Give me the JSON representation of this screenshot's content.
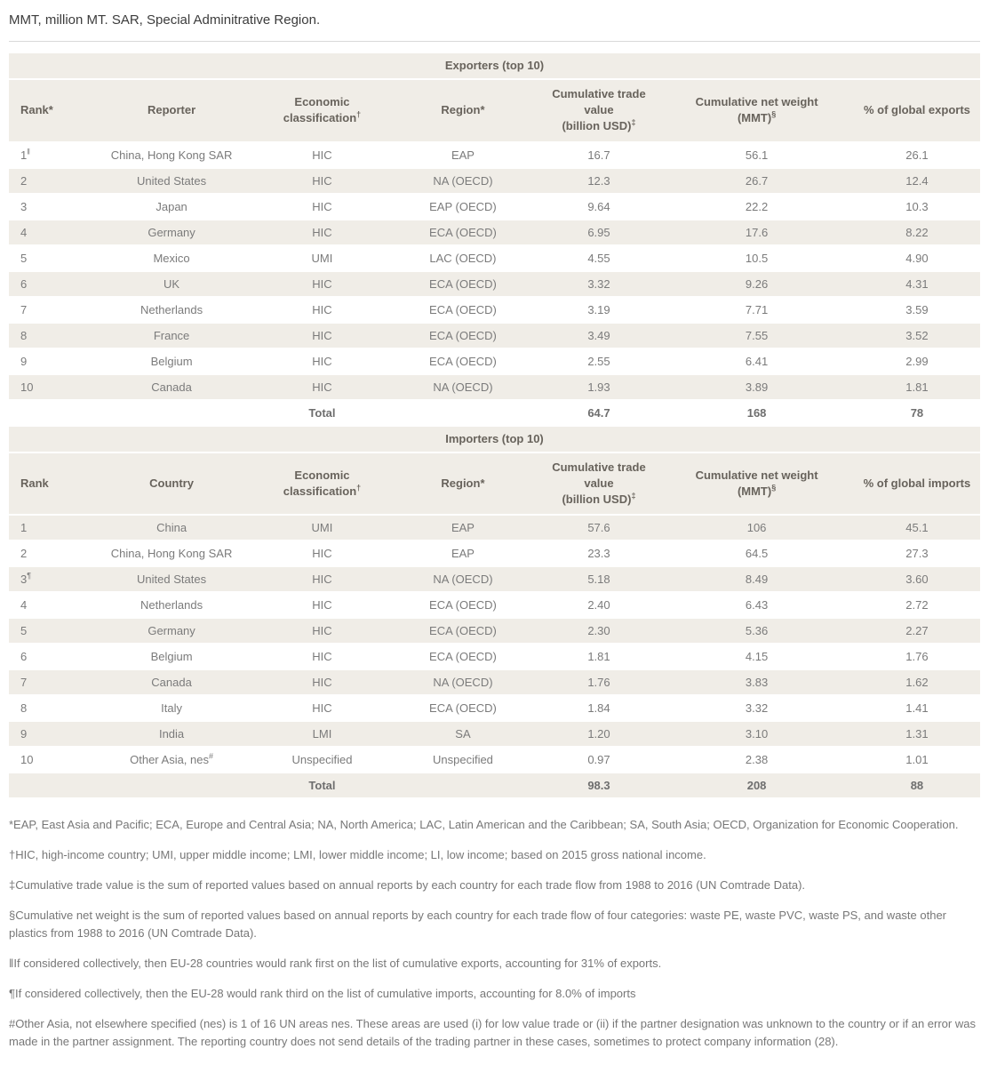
{
  "caption": "MMT, million MT. SAR, Special Adminitrative Region.",
  "colors": {
    "stripe_beige": "#f0ede7",
    "header_text": "#68635c",
    "body_text": "#7b7b7b",
    "title_text": "#3c3c3c",
    "footnote_text": "#777777",
    "divider": "#d9d9d9"
  },
  "exporters": {
    "section_title": "Exporters (top 10)",
    "columns": [
      {
        "key": "rank",
        "line1": "Rank*"
      },
      {
        "key": "reporter",
        "line1": "Reporter"
      },
      {
        "key": "econ",
        "line1": "Economic classification",
        "sup": "†"
      },
      {
        "key": "region",
        "line1": "Region*"
      },
      {
        "key": "trade",
        "line1": "Cumulative trade value",
        "line2": "(billion USD)",
        "sup2": "‡"
      },
      {
        "key": "weight",
        "line1": "Cumulative net weight",
        "line2": "(MMT)",
        "sup2": "§"
      },
      {
        "key": "pct",
        "line1": "% of global exports"
      }
    ],
    "rows": [
      {
        "rank": "1",
        "rank_sup": "‖",
        "name": "China, Hong Kong SAR",
        "name_sup": "",
        "econ": "HIC",
        "region": "EAP",
        "trade": "16.7",
        "weight": "56.1",
        "pct": "26.1"
      },
      {
        "rank": "2",
        "rank_sup": "",
        "name": "United States",
        "name_sup": "",
        "econ": "HIC",
        "region": "NA (OECD)",
        "trade": "12.3",
        "weight": "26.7",
        "pct": "12.4"
      },
      {
        "rank": "3",
        "rank_sup": "",
        "name": "Japan",
        "name_sup": "",
        "econ": "HIC",
        "region": "EAP (OECD)",
        "trade": "9.64",
        "weight": "22.2",
        "pct": "10.3"
      },
      {
        "rank": "4",
        "rank_sup": "",
        "name": "Germany",
        "name_sup": "",
        "econ": "HIC",
        "region": "ECA (OECD)",
        "trade": "6.95",
        "weight": "17.6",
        "pct": "8.22"
      },
      {
        "rank": "5",
        "rank_sup": "",
        "name": "Mexico",
        "name_sup": "",
        "econ": "UMI",
        "region": "LAC (OECD)",
        "trade": "4.55",
        "weight": "10.5",
        "pct": "4.90"
      },
      {
        "rank": "6",
        "rank_sup": "",
        "name": "UK",
        "name_sup": "",
        "econ": "HIC",
        "region": "ECA (OECD)",
        "trade": "3.32",
        "weight": "9.26",
        "pct": "4.31"
      },
      {
        "rank": "7",
        "rank_sup": "",
        "name": "Netherlands",
        "name_sup": "",
        "econ": "HIC",
        "region": "ECA (OECD)",
        "trade": "3.19",
        "weight": "7.71",
        "pct": "3.59"
      },
      {
        "rank": "8",
        "rank_sup": "",
        "name": "France",
        "name_sup": "",
        "econ": "HIC",
        "region": "ECA (OECD)",
        "trade": "3.49",
        "weight": "7.55",
        "pct": "3.52"
      },
      {
        "rank": "9",
        "rank_sup": "",
        "name": "Belgium",
        "name_sup": "",
        "econ": "HIC",
        "region": "ECA (OECD)",
        "trade": "2.55",
        "weight": "6.41",
        "pct": "2.99"
      },
      {
        "rank": "10",
        "rank_sup": "",
        "name": "Canada",
        "name_sup": "",
        "econ": "HIC",
        "region": "NA (OECD)",
        "trade": "1.93",
        "weight": "3.89",
        "pct": "1.81"
      }
    ],
    "total": {
      "label": "Total",
      "trade": "64.7",
      "weight": "168",
      "pct": "78"
    }
  },
  "importers": {
    "section_title": "Importers (top 10)",
    "columns": [
      {
        "key": "rank",
        "line1": "Rank"
      },
      {
        "key": "country",
        "line1": "Country"
      },
      {
        "key": "econ",
        "line1": "Economic classification",
        "sup": "†"
      },
      {
        "key": "region",
        "line1": "Region*"
      },
      {
        "key": "trade",
        "line1": "Cumulative trade value",
        "line2": "(billion USD)",
        "sup2": "‡"
      },
      {
        "key": "weight",
        "line1": "Cumulative net weight",
        "line2": "(MMT)",
        "sup2": "§"
      },
      {
        "key": "pct",
        "line1": "% of global imports"
      }
    ],
    "rows": [
      {
        "rank": "1",
        "rank_sup": "",
        "name": "China",
        "name_sup": "",
        "econ": "UMI",
        "region": "EAP",
        "trade": "57.6",
        "weight": "106",
        "pct": "45.1"
      },
      {
        "rank": "2",
        "rank_sup": "",
        "name": "China, Hong Kong SAR",
        "name_sup": "",
        "econ": "HIC",
        "region": "EAP",
        "trade": "23.3",
        "weight": "64.5",
        "pct": "27.3"
      },
      {
        "rank": "3",
        "rank_sup": "¶",
        "name": "United States",
        "name_sup": "",
        "econ": "HIC",
        "region": "NA (OECD)",
        "trade": "5.18",
        "weight": "8.49",
        "pct": "3.60"
      },
      {
        "rank": "4",
        "rank_sup": "",
        "name": "Netherlands",
        "name_sup": "",
        "econ": "HIC",
        "region": "ECA (OECD)",
        "trade": "2.40",
        "weight": "6.43",
        "pct": "2.72"
      },
      {
        "rank": "5",
        "rank_sup": "",
        "name": "Germany",
        "name_sup": "",
        "econ": "HIC",
        "region": "ECA (OECD)",
        "trade": "2.30",
        "weight": "5.36",
        "pct": "2.27"
      },
      {
        "rank": "6",
        "rank_sup": "",
        "name": "Belgium",
        "name_sup": "",
        "econ": "HIC",
        "region": "ECA (OECD)",
        "trade": "1.81",
        "weight": "4.15",
        "pct": "1.76"
      },
      {
        "rank": "7",
        "rank_sup": "",
        "name": "Canada",
        "name_sup": "",
        "econ": "HIC",
        "region": "NA (OECD)",
        "trade": "1.76",
        "weight": "3.83",
        "pct": "1.62"
      },
      {
        "rank": "8",
        "rank_sup": "",
        "name": "Italy",
        "name_sup": "",
        "econ": "HIC",
        "region": "ECA (OECD)",
        "trade": "1.84",
        "weight": "3.32",
        "pct": "1.41"
      },
      {
        "rank": "9",
        "rank_sup": "",
        "name": "India",
        "name_sup": "",
        "econ": "LMI",
        "region": "SA",
        "trade": "1.20",
        "weight": "3.10",
        "pct": "1.31"
      },
      {
        "rank": "10",
        "rank_sup": "",
        "name": "Other Asia, nes",
        "name_sup": "#",
        "econ": "Unspecified",
        "region": "Unspecified",
        "trade": "0.97",
        "weight": "2.38",
        "pct": "1.01"
      }
    ],
    "total": {
      "label": "Total",
      "trade": "98.3",
      "weight": "208",
      "pct": "88"
    }
  },
  "footnotes": [
    "*EAP, East Asia and Pacific; ECA, Europe and Central Asia; NA, North America; LAC, Latin American and the Caribbean; SA, South Asia; OECD, Organization for Economic Cooperation.",
    "†HIC, high-income country; UMI, upper middle income; LMI, lower middle income; LI, low income; based on 2015 gross national income.",
    "‡Cumulative trade value is the sum of reported values based on annual reports by each country for each trade flow from 1988 to 2016 (UN Comtrade Data).",
    "§Cumulative net weight is the sum of reported values based on annual reports by each country for each trade flow of four categories: waste PE, waste PVC, waste PS, and waste other plastics from 1988 to 2016 (UN Comtrade Data).",
    "‖If considered collectively, then EU-28 countries would rank first on the list of cumulative exports, accounting for 31% of exports.",
    "¶If considered collectively, then the EU-28 would rank third on the list of cumulative imports, accounting for 8.0% of imports",
    "#Other Asia, not elsewhere specified (nes) is 1 of 16 UN areas nes. These areas are used (i) for low value trade or (ii) if the partner designation was unknown to the country or if an error was made in the partner assignment. The reporting country does not send details of the trading partner in these cases, sometimes to protect company information (28)."
  ]
}
